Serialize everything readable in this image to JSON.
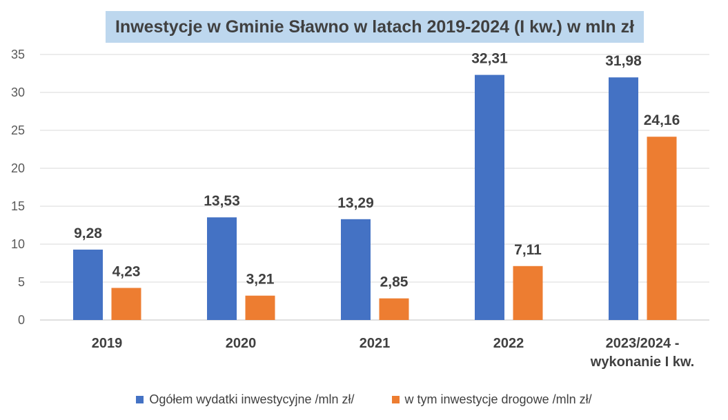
{
  "chart_data": {
    "type": "bar",
    "title": "Inwestycje w Gminie Sławno w latach 2019-2024 (I kw.) w mln zł",
    "categories": [
      [
        "2019"
      ],
      [
        "2020"
      ],
      [
        "2021"
      ],
      [
        "2022"
      ],
      [
        "2023/2024 -",
        "wykonanie I kw."
      ]
    ],
    "series": [
      {
        "name": "Ogółem wydatki inwestycyjne /mln zł/",
        "color": "#4472c4",
        "values": [
          9.28,
          13.53,
          13.29,
          32.31,
          31.98
        ],
        "labels": [
          "9,28",
          "13,53",
          "13,29",
          "32,31",
          "31,98"
        ]
      },
      {
        "name": "w tym inwestycje drogowe /mln zł/",
        "color": "#ed7d31",
        "values": [
          4.23,
          3.21,
          2.85,
          7.11,
          24.16
        ],
        "labels": [
          "4,23",
          "3,21",
          "2,85",
          "7,11",
          "24,16"
        ]
      }
    ],
    "y_ticks": [
      0,
      5,
      10,
      15,
      20,
      25,
      30,
      35
    ],
    "ylim": [
      0,
      35
    ],
    "grid": true,
    "legend_position": "bottom",
    "title_background": "#bdd7ee"
  }
}
